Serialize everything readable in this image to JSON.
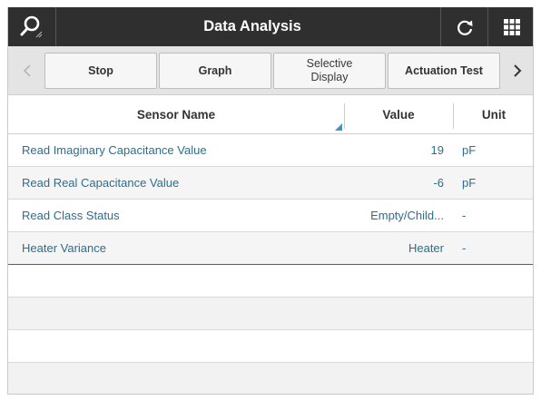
{
  "header": {
    "title": "Data Analysis",
    "icons": {
      "search": "search-icon",
      "refresh": "refresh-icon",
      "grid": "grid-menu-icon"
    }
  },
  "toolbar": {
    "prev_icon": "chevron-left-icon",
    "next_icon": "chevron-right-icon",
    "buttons": [
      {
        "label": "Stop"
      },
      {
        "label": "Graph"
      },
      {
        "label_line1": "Selective",
        "label_line2": "Display"
      },
      {
        "label": "Actuation Test"
      }
    ]
  },
  "table": {
    "columns": {
      "name": "Sensor Name",
      "value": "Value",
      "unit": "Unit"
    },
    "rows": [
      {
        "name": "Read Imaginary Capacitance Value",
        "value": "19",
        "unit": "pF"
      },
      {
        "name": "Read Real Capacitance Value",
        "value": "-6",
        "unit": "pF"
      },
      {
        "name": "Read Class Status",
        "value": "Empty/Child...",
        "unit": "-"
      },
      {
        "name": "Heater Variance",
        "value": "Heater",
        "unit": "-"
      }
    ]
  },
  "colors": {
    "titlebar": "#2f2f2f",
    "toolbar": "#e4e4e4",
    "data_text": "#2a6f8e",
    "sort_indicator": "#4a90c0"
  }
}
